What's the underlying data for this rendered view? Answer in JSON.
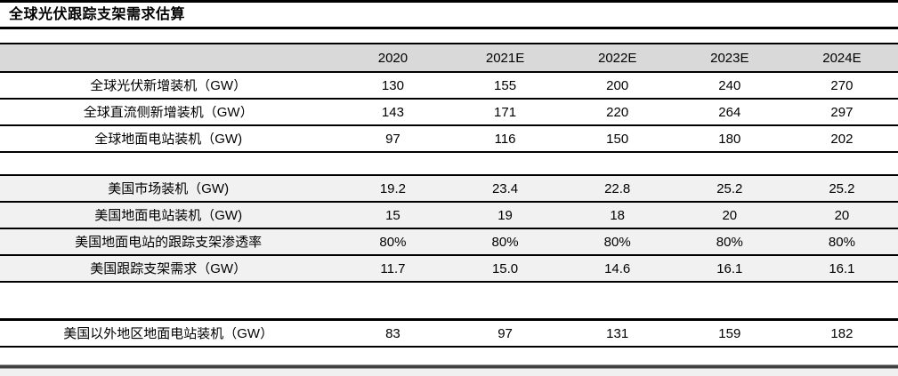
{
  "title": "全球光伏跟踪支架需求估算",
  "table": {
    "columns": [
      "2020",
      "2021E",
      "2022E",
      "2023E",
      "2024E"
    ],
    "rows": [
      {
        "label": "全球光伏新增装机（GW）",
        "values": [
          "130",
          "155",
          "200",
          "240",
          "270"
        ]
      },
      {
        "label": "全球直流侧新增装机（GW）",
        "values": [
          "143",
          "171",
          "220",
          "264",
          "297"
        ]
      },
      {
        "label": "全球地面电站装机（GW)",
        "values": [
          "97",
          "116",
          "150",
          "180",
          "202"
        ]
      },
      {
        "label": "美国市场装机（GW)",
        "values": [
          "19.2",
          "23.4",
          "22.8",
          "25.2",
          "25.2"
        ]
      },
      {
        "label": "美国地面电站装机（GW)",
        "values": [
          "15",
          "19",
          "18",
          "20",
          "20"
        ]
      },
      {
        "label": "美国地面电站的跟踪支架渗透率",
        "values": [
          "80%",
          "80%",
          "80%",
          "80%",
          "80%"
        ]
      },
      {
        "label": "美国跟踪支架需求（GW）",
        "values": [
          "11.7",
          "15.0",
          "14.6",
          "16.1",
          "16.1"
        ]
      },
      {
        "label": "美国以外地区地面电站装机（GW）",
        "values": [
          "83",
          "97",
          "131",
          "159",
          "182"
        ]
      }
    ]
  },
  "colors": {
    "header_row_bg": "#d9d9d9",
    "shaded_row_bg": "#f1f1f1",
    "row_border": "#000000",
    "bottom_divider": "#404040",
    "text": "#000000"
  }
}
